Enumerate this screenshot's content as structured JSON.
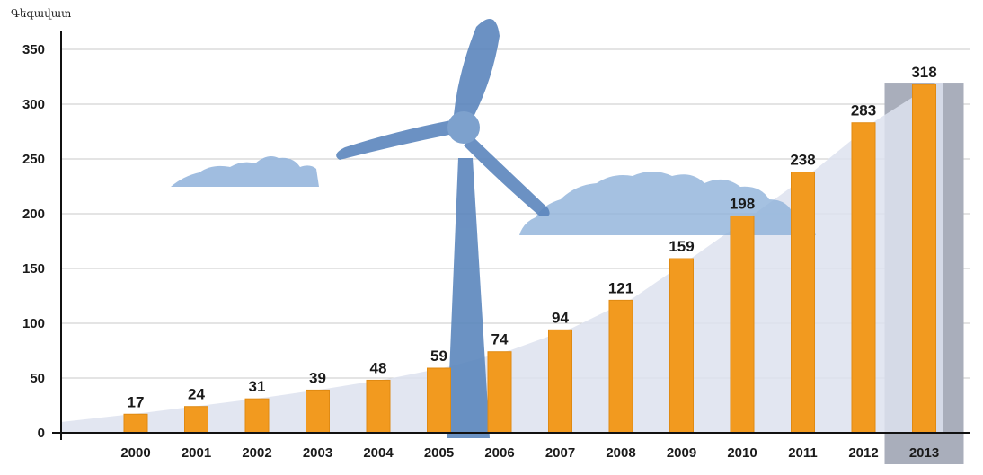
{
  "chart_data": {
    "type": "bar",
    "title": "",
    "ylabel": "Գեգավատ",
    "xlabel": "",
    "categories": [
      "2000",
      "2001",
      "2002",
      "2003",
      "2004",
      "2005",
      "2006",
      "2007",
      "2008",
      "2009",
      "2010",
      "2011",
      "2012",
      "2013"
    ],
    "values": [
      17,
      24,
      31,
      39,
      48,
      59,
      74,
      94,
      121,
      159,
      198,
      238,
      283,
      318
    ],
    "yticks": [
      0,
      50,
      100,
      150,
      200,
      250,
      300,
      350
    ],
    "ylim": [
      0,
      350
    ],
    "grid": true,
    "highlight_category": "2013",
    "colors": {
      "bar": "#f29a1f",
      "bar_edge": "#e08a12",
      "area": "#dde2ee",
      "highlight_band": "#a9aebb",
      "cloud": "#8fb2da",
      "turbine": "#5b86bd",
      "grid": "#c8c8c8",
      "axis": "#111111"
    }
  }
}
